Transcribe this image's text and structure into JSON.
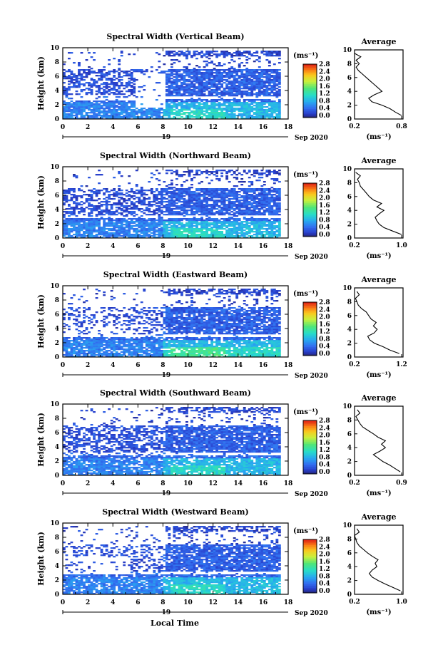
{
  "figure": {
    "xlabel": "Local Time",
    "date_label": "Sep 2020",
    "day_label": "19"
  },
  "chart_data": [
    {
      "type": "heatmap",
      "title": "Spectral Width (Vertical Beam)",
      "ylabel": "Height (km)",
      "xlim": [
        0,
        18
      ],
      "ylim": [
        0,
        10
      ],
      "xticks": [
        "0",
        "2",
        "4",
        "6",
        "8",
        "10",
        "12",
        "14",
        "16",
        "18"
      ],
      "yticks": [
        "0",
        "2",
        "4",
        "6",
        "8",
        "10"
      ],
      "colorbar": {
        "unit": "(ms⁻¹)",
        "ticks": [
          "0.0",
          "0.4",
          "0.8",
          "1.2",
          "1.6",
          "2.0",
          "2.4",
          "2.8"
        ]
      },
      "profile": {
        "title": "Average",
        "xlabel": "(ms⁻¹)",
        "xticks": [
          "0.2",
          "0.8"
        ],
        "xlim": [
          0.2,
          0.8
        ],
        "heights": [
          0.5,
          1.0,
          1.5,
          2.0,
          2.5,
          3.0,
          3.5,
          4.0,
          4.5,
          5.0,
          5.5,
          6.0,
          6.5,
          7.0,
          7.5,
          8.0,
          8.5,
          9.0,
          9.5
        ],
        "values": [
          0.8,
          0.72,
          0.65,
          0.55,
          0.42,
          0.38,
          0.45,
          0.55,
          0.5,
          0.45,
          0.4,
          0.35,
          0.3,
          0.25,
          0.22,
          0.26,
          0.22,
          0.28,
          0.2
        ]
      }
    },
    {
      "type": "heatmap",
      "title": "Spectral Width (Northward Beam)",
      "ylabel": "Height (km)",
      "xlim": [
        0,
        18
      ],
      "ylim": [
        0,
        10
      ],
      "xticks": [
        "0",
        "2",
        "4",
        "6",
        "8",
        "10",
        "12",
        "14",
        "16",
        "18"
      ],
      "yticks": [
        "0",
        "2",
        "4",
        "6",
        "8",
        "10"
      ],
      "colorbar": {
        "unit": "(ms⁻¹)",
        "ticks": [
          "0.0",
          "0.4",
          "0.8",
          "1.2",
          "1.6",
          "2.0",
          "2.4",
          "2.8"
        ]
      },
      "profile": {
        "title": "Average",
        "xlabel": "(ms⁻¹)",
        "xticks": [
          "0.2",
          "1.0"
        ],
        "xlim": [
          0.2,
          1.0
        ],
        "heights": [
          0.5,
          1.0,
          1.5,
          2.0,
          2.5,
          3.0,
          3.5,
          4.0,
          4.5,
          5.0,
          5.5,
          6.0,
          6.5,
          7.0,
          7.5,
          8.0,
          8.5,
          9.0,
          9.5
        ],
        "values": [
          1.0,
          0.85,
          0.7,
          0.62,
          0.58,
          0.55,
          0.62,
          0.7,
          0.58,
          0.66,
          0.52,
          0.45,
          0.4,
          0.35,
          0.3,
          0.28,
          0.25,
          0.3,
          0.22
        ]
      }
    },
    {
      "type": "heatmap",
      "title": "Spectral Width (Eastward Beam)",
      "ylabel": "Height (km)",
      "xlim": [
        0,
        18
      ],
      "ylim": [
        0,
        10
      ],
      "xticks": [
        "0",
        "2",
        "4",
        "6",
        "8",
        "10",
        "12",
        "14",
        "16",
        "18"
      ],
      "yticks": [
        "0",
        "2",
        "4",
        "6",
        "8",
        "10"
      ],
      "colorbar": {
        "unit": "(ms⁻¹)",
        "ticks": [
          "0.0",
          "0.4",
          "0.8",
          "1.2",
          "1.6",
          "2.0",
          "2.4",
          "2.8"
        ]
      },
      "profile": {
        "title": "Average",
        "xlabel": "(ms⁻¹)",
        "xticks": [
          "0.2",
          "1.2"
        ],
        "xlim": [
          0.2,
          1.2
        ],
        "heights": [
          0.5,
          1.0,
          1.5,
          2.0,
          2.5,
          3.0,
          3.5,
          4.0,
          4.5,
          5.0,
          5.5,
          6.0,
          6.5,
          7.0,
          7.5,
          8.0,
          8.5,
          9.0,
          9.5
        ],
        "values": [
          1.15,
          0.95,
          0.8,
          0.62,
          0.52,
          0.48,
          0.62,
          0.68,
          0.6,
          0.66,
          0.55,
          0.5,
          0.45,
          0.35,
          0.28,
          0.25,
          0.22,
          0.3,
          0.25
        ]
      }
    },
    {
      "type": "heatmap",
      "title": "Spectral Width (Southward Beam)",
      "ylabel": "Height (km)",
      "xlim": [
        0,
        18
      ],
      "ylim": [
        0,
        10
      ],
      "xticks": [
        "0",
        "2",
        "4",
        "6",
        "8",
        "10",
        "12",
        "14",
        "16",
        "18"
      ],
      "yticks": [
        "0",
        "2",
        "4",
        "6",
        "8",
        "10"
      ],
      "colorbar": {
        "unit": "(ms⁻¹)",
        "ticks": [
          "0.0",
          "0.4",
          "0.8",
          "1.2",
          "1.6",
          "2.0",
          "2.4",
          "2.8"
        ]
      },
      "profile": {
        "title": "Average",
        "xlabel": "(ms⁻¹)",
        "xticks": [
          "0.2",
          "0.9"
        ],
        "xlim": [
          0.2,
          0.9
        ],
        "heights": [
          0.5,
          1.0,
          1.5,
          2.0,
          2.5,
          3.0,
          3.5,
          4.0,
          4.5,
          5.0,
          5.5,
          6.0,
          6.5,
          7.0,
          7.5,
          8.0,
          8.5,
          9.0,
          9.5
        ],
        "values": [
          0.88,
          0.8,
          0.72,
          0.62,
          0.55,
          0.48,
          0.58,
          0.66,
          0.6,
          0.66,
          0.55,
          0.48,
          0.4,
          0.32,
          0.28,
          0.25,
          0.22,
          0.28,
          0.24
        ]
      }
    },
    {
      "type": "heatmap",
      "title": "Spectral Width (Westward Beam)",
      "ylabel": "Height (km)",
      "xlim": [
        0,
        18
      ],
      "ylim": [
        0,
        10
      ],
      "xticks": [
        "0",
        "2",
        "4",
        "6",
        "8",
        "10",
        "12",
        "14",
        "16",
        "18"
      ],
      "yticks": [
        "0",
        "2",
        "4",
        "6",
        "8",
        "10"
      ],
      "colorbar": {
        "unit": "(ms⁻¹)",
        "ticks": [
          "0.0",
          "0.4",
          "0.8",
          "1.2",
          "1.6",
          "2.0",
          "2.4",
          "2.8"
        ]
      },
      "profile": {
        "title": "Average",
        "xlabel": "(ms⁻¹)",
        "xticks": [
          "0.2",
          "1.0"
        ],
        "xlim": [
          0.2,
          1.0
        ],
        "heights": [
          0.5,
          1.0,
          1.5,
          2.0,
          2.5,
          3.0,
          3.5,
          4.0,
          4.5,
          5.0,
          5.5,
          6.0,
          6.5,
          7.0,
          7.5,
          8.0,
          8.5,
          9.0,
          9.5
        ],
        "values": [
          0.98,
          0.85,
          0.72,
          0.6,
          0.5,
          0.45,
          0.5,
          0.58,
          0.55,
          0.6,
          0.5,
          0.42,
          0.35,
          0.28,
          0.24,
          0.22,
          0.2,
          0.28,
          0.24
        ]
      }
    }
  ]
}
